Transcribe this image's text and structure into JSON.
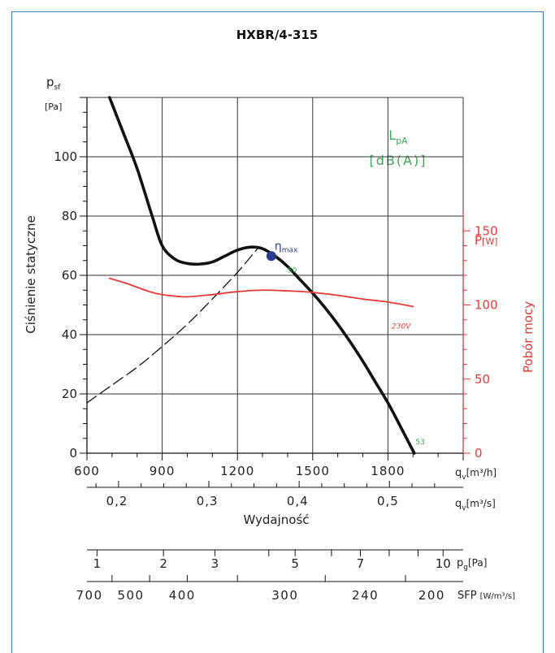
{
  "chart_data": {
    "type": "line",
    "title": "HXBR/4-315",
    "left_axis": {
      "symbol": "p",
      "symbol_sub": "sf",
      "unit": "[Pa]",
      "label": "Ciśnienie statyczne",
      "range": [
        0,
        120
      ],
      "ticks": [
        "0",
        "20",
        "40",
        "60",
        "80",
        "100"
      ]
    },
    "right_axis": {
      "symbol": "P",
      "unit": "[W]",
      "label": "Pobór mocy",
      "range": [
        0,
        240
      ],
      "ticks": [
        "0",
        "50",
        "100",
        "150"
      ],
      "color": "#e53935"
    },
    "x_axis": {
      "symbol": "q",
      "symbol_sub": "v",
      "unit": "[m³/h]",
      "range": [
        600,
        2100
      ],
      "ticks": [
        "600",
        "900",
        "1200",
        "1500",
        "1800"
      ]
    },
    "x_axis_m3s": {
      "symbol": "q",
      "symbol_sub": "v",
      "unit": "[m³/s]",
      "ticks": [
        {
          "q_m3h": 720,
          "label": "0,2"
        },
        {
          "q_m3h": 1080,
          "label": "0,3"
        },
        {
          "q_m3h": 1440,
          "label": "0,4"
        },
        {
          "q_m3h": 1800,
          "label": "0,5"
        }
      ],
      "caption": "Wydajność"
    },
    "dynamic_pressure_scale": {
      "symbol": "p",
      "symbol_sub": "g",
      "unit": "[Pa]",
      "ticks": [
        {
          "q_m3h": 640,
          "label": "1"
        },
        {
          "q_m3h": 905,
          "label": "2"
        },
        {
          "q_m3h": 1110,
          "label": "3"
        },
        {
          "q_m3h": 1430,
          "label": "5"
        },
        {
          "q_m3h": 1690,
          "label": "7"
        },
        {
          "q_m3h": 2020,
          "label": "10"
        }
      ],
      "minor_q_m3h": [
        1325,
        1575,
        1805,
        1920
      ]
    },
    "sfp_scale": {
      "symbol": "SFP",
      "unit": "[W/m³/s]",
      "labels": [
        {
          "q_m3h": 610,
          "label": "700"
        },
        {
          "q_m3h": 775,
          "label": "500"
        },
        {
          "q_m3h": 980,
          "label": "400"
        },
        {
          "q_m3h": 1390,
          "label": "300"
        },
        {
          "q_m3h": 1710,
          "label": "240"
        },
        {
          "q_m3h": 1975,
          "label": "200"
        }
      ],
      "ticks_q_m3h": [
        700,
        850,
        1000,
        1200,
        1550,
        1870
      ]
    },
    "series": [
      {
        "name": "pressure",
        "axis": "left",
        "color": "#111111",
        "points": [
          [
            690,
            120
          ],
          [
            750,
            107
          ],
          [
            800,
            96
          ],
          [
            860,
            80
          ],
          [
            900,
            70
          ],
          [
            950,
            65.5
          ],
          [
            1000,
            64
          ],
          [
            1050,
            63.8
          ],
          [
            1100,
            64.5
          ],
          [
            1150,
            66.5
          ],
          [
            1200,
            68.5
          ],
          [
            1250,
            69.5
          ],
          [
            1300,
            69
          ],
          [
            1350,
            66.5
          ],
          [
            1400,
            63
          ],
          [
            1450,
            58.5
          ],
          [
            1500,
            54
          ],
          [
            1550,
            49
          ],
          [
            1600,
            43.5
          ],
          [
            1650,
            37.5
          ],
          [
            1700,
            31
          ],
          [
            1750,
            24
          ],
          [
            1800,
            17
          ],
          [
            1850,
            9
          ],
          [
            1905,
            0
          ]
        ]
      },
      {
        "name": "",
        "axis": "left",
        "color": "#111111",
        "dashed": true,
        "points": [
          [
            600,
            17
          ],
          [
            700,
            23
          ],
          [
            800,
            29
          ],
          [
            900,
            36
          ],
          [
            1000,
            43.5
          ],
          [
            1100,
            52
          ],
          [
            1200,
            61
          ],
          [
            1280,
            69
          ]
        ]
      },
      {
        "name": "power",
        "axis": "right",
        "color": "#e53935",
        "points": [
          [
            690,
            118
          ],
          [
            750,
            115
          ],
          [
            800,
            112
          ],
          [
            850,
            109
          ],
          [
            900,
            107
          ],
          [
            950,
            106
          ],
          [
            1000,
            105.5
          ],
          [
            1100,
            107
          ],
          [
            1200,
            109
          ],
          [
            1300,
            110
          ],
          [
            1400,
            109.5
          ],
          [
            1500,
            108.5
          ],
          [
            1600,
            106.5
          ],
          [
            1700,
            104
          ],
          [
            1800,
            102
          ],
          [
            1900,
            99
          ]
        ]
      }
    ],
    "annotations": [
      {
        "text": "η",
        "sub": "max",
        "q": 1335,
        "y": 66.5,
        "kind": "point",
        "color": "#2b3a8f"
      },
      {
        "text": "50",
        "q": 1400,
        "y": 61,
        "color": "#3aa757"
      },
      {
        "text": "53",
        "q": 1910,
        "y": 3,
        "color": "#3aa757"
      },
      {
        "text": "230V",
        "q": 1815,
        "y": 42,
        "color": "#e53935"
      }
    ],
    "lpa_label": {
      "main": "L",
      "sub": "pA",
      "unit": "[dB(A)]",
      "color": "#3aa757"
    },
    "grid": true,
    "legend": "none"
  }
}
